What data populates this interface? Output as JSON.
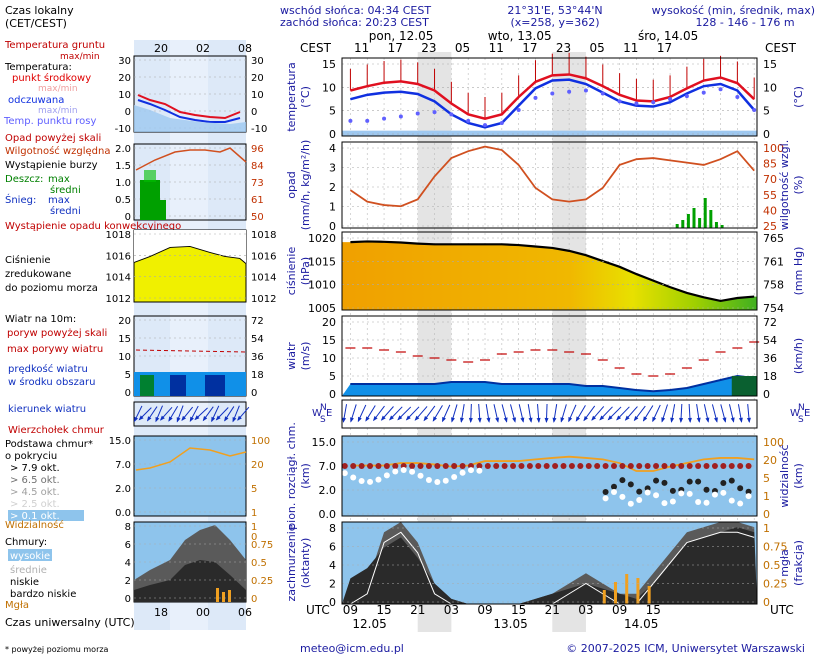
{
  "header": {
    "sunrise": "wschód słońca: 04:34 CEST",
    "sunset": "zachód słońca: 20:23 CEST",
    "coords": "21°31'E, 53°44'N",
    "grid": "(x=258, y=362)",
    "elevation_title": "wysokość (min, średnik, max)",
    "elevation_values": "128 - 146 - 176 m"
  },
  "time": {
    "cest_label": "CEST",
    "utc_label": "UTC",
    "days_top": [
      "pon, 12.05",
      "wto, 13.05",
      "śro, 14.05"
    ],
    "hours_top": [
      "11",
      "17",
      "23",
      "05",
      "11",
      "17",
      "23",
      "05",
      "11",
      "17"
    ],
    "hours_bottom": [
      "09",
      "15",
      "21",
      "03",
      "09",
      "15",
      "21",
      "03",
      "09",
      "15"
    ],
    "days_bottom": [
      "12.05",
      "13.05",
      "14.05"
    ]
  },
  "legend": {
    "local_time": "Czas lokalny",
    "local_time_sub": "(CET/CEST)",
    "legend_hours_top": [
      "20",
      "02",
      "08"
    ],
    "legend_hours_bottom": [
      "18",
      "00",
      "06"
    ],
    "soil_temp": "Temperatura gruntu",
    "soil_temp_sub": "max/min",
    "temperature": "Temperatura:",
    "mid_point": "punkt środkowy",
    "max_min": "max/min",
    "perceived": "odczuwana",
    "dew_point": "Temp. punktu rosy",
    "precip_over": "Opad powyżej skali",
    "rel_humidity": "Wilgotność względna",
    "storm": "Wystąpienie burzy",
    "rain": "Deszcz:",
    "max": "max",
    "mean": "średni",
    "snow": "Śnieg:",
    "conv_precip": "Wystąpienie opadu konwekcyjnego",
    "pressure": "Ciśnienie zredukowane do poziomu morza",
    "wind_10m": "Wiatr na 10m:",
    "gust_over": "poryw powyżej skali",
    "max_gusts": "max porywy wiatru",
    "wind_speed": "prędkość wiatru w środku obszaru",
    "wind_dir": "kierunek wiatru",
    "cb_top": "Wierzchołek chmur",
    "cloud_base": "Podstawa chmur* o pokryciu",
    "okt_levels": [
      "> 7.9 okt.",
      "> 6.5 okt.",
      "> 4.5 okt.",
      "> 2.5 okt.",
      "> 0.1 okt."
    ],
    "visibility": "Widzialność",
    "clouds": "Chmury:",
    "high": "wysokie",
    "middle": "średnie",
    "low": "niskie",
    "very_low": "bardzo niskie",
    "fog": "Mgła",
    "utc_time": "Czas uniwersalny (UTC)",
    "footnote": "* powyżej poziomu morza"
  },
  "panel_labels": {
    "temp_left": "temperatura",
    "temp_left_unit": "(°C)",
    "temp_right": "(°C)",
    "precip_left": "opad",
    "precip_left_unit": "(mm/h, kg/m²/h)",
    "precip_right": "wilgotność wzgl.",
    "precip_right_unit": "(%)",
    "pressure_left": "ciśnienie",
    "pressure_left_unit": "(hPa)",
    "pressure_right": "(mm Hg)",
    "wind_left": "wiatr",
    "wind_left_unit": "(m/s)",
    "wind_right": "(km/h)",
    "cloud_left": "pion. rozciągł. chm.",
    "cloud_left_unit": "(km)",
    "cloud_right": "widzialność",
    "cloud_right_unit": "(km)",
    "cover_left": "zachmurzenie",
    "cover_left_unit": "(oktanty)",
    "cover_right": "mgła",
    "cover_right_unit": "(frakcja)",
    "wind_dir_N": "N",
    "wind_dir_S": "S",
    "wind_dir_W": "W",
    "wind_dir_E": "E"
  },
  "axes": {
    "temp_left_ticks": [
      "15",
      "10",
      "5",
      "0"
    ],
    "temp_right_ticks": [
      "15",
      "10",
      "5",
      "0"
    ],
    "precip_left_ticks": [
      "4",
      "3",
      "2",
      "1",
      "0"
    ],
    "precip_right_ticks": [
      "100",
      "85",
      "70",
      "55",
      "40",
      "25"
    ],
    "pressure_left_ticks": [
      "1020",
      "1015",
      "1010",
      "1005"
    ],
    "pressure_right_ticks": [
      "765",
      "761",
      "758",
      "754"
    ],
    "wind_left_ticks": [
      "20",
      "15",
      "10",
      "5",
      "0"
    ],
    "wind_right_ticks": [
      "72",
      "54",
      "36",
      "18",
      "0"
    ],
    "cloud_left_ticks": [
      "15.0",
      "7.0",
      "2.0",
      "0.0"
    ],
    "cloud_right_ticks": [
      "100",
      "20",
      "5",
      "1",
      "0"
    ],
    "cover_left_ticks": [
      "8",
      "6",
      "4",
      "2",
      "0"
    ],
    "cover_right_ticks": [
      "1",
      "0.75",
      "0.5",
      "0.25",
      "0"
    ],
    "leg_temp_left": [
      "30",
      "20",
      "10",
      "0",
      "-10"
    ],
    "leg_temp_right": [
      "30",
      "20",
      "10",
      "0",
      "-10"
    ],
    "leg_precip_left": [
      "2.0",
      "1.5",
      "1.0",
      "0.5",
      "0"
    ],
    "leg_precip_right": [
      "96",
      "84",
      "73",
      "61",
      "50"
    ],
    "leg_press_left": [
      "1018",
      "1016",
      "1014",
      "1012"
    ],
    "leg_press_right": [
      "1018",
      "1016",
      "1014",
      "1012"
    ],
    "leg_wind_left": [
      "20",
      "15",
      "10",
      "5",
      "0"
    ],
    "leg_wind_right": [
      "72",
      "54",
      "36",
      "18",
      "0"
    ],
    "leg_cloud_left": [
      "15.0",
      "7.0",
      "2.0",
      "0.0"
    ],
    "leg_cloud_right": [
      "100",
      "20",
      "5",
      "1",
      "0"
    ],
    "leg_cover_left": [
      "8",
      "6",
      "4",
      "2",
      "0"
    ],
    "leg_cover_right": [
      "1",
      "0.75",
      "0.5",
      "0.25",
      "0"
    ]
  },
  "footer": {
    "email": "meteo@icm.edu.pl",
    "copyright": "© 2007-2025 ICM, Uniwersytet Warszawski"
  },
  "colors": {
    "night": "#e4e4e4",
    "legend_bg": "#dde9f8",
    "temp_red": "#e01020",
    "temp_blue": "#1030e0",
    "dew_point": "#6060ff",
    "humidity": "#d05020",
    "pressure_line": "#000000",
    "wind_blue": "#1090e8",
    "wind_dark": "#0030a0",
    "cloud_bg": "#8ec4ec",
    "visibility": "#f0a020",
    "label_blue": "#1a1aa0"
  },
  "chart_data": [
    {
      "type": "line",
      "title": "temperatura",
      "ylabel": "temperatura (°C)",
      "ylim": [
        -1,
        17
      ],
      "x": [
        0,
        3,
        6,
        9,
        12,
        15,
        18,
        21,
        24,
        27,
        30,
        33,
        36,
        39,
        42,
        45,
        48,
        51,
        54,
        57,
        60,
        63,
        66,
        69,
        72
      ],
      "series": [
        {
          "name": "punkt środkowy",
          "values": [
            9.5,
            10.5,
            11.3,
            11.6,
            11.0,
            9.5,
            6.5,
            4.0,
            3.0,
            4.0,
            8.0,
            11.5,
            13.0,
            13.2,
            12.3,
            10.5,
            8.5,
            7.2,
            7.0,
            8.0,
            10.0,
            11.8,
            12.5,
            11.2,
            7.5
          ]
        },
        {
          "name": "odczuwana",
          "values": [
            7.5,
            8.5,
            9.0,
            9.2,
            8.7,
            7.0,
            4.0,
            2.0,
            1.0,
            2.0,
            6.0,
            10.0,
            11.8,
            12.0,
            11.0,
            9.0,
            7.0,
            6.0,
            5.8,
            6.8,
            8.8,
            10.5,
            11.0,
            9.5,
            5.0
          ]
        },
        {
          "name": "Temp. punktu rosy",
          "values": [
            2.5,
            2.5,
            3.0,
            3.5,
            4.2,
            4.5,
            4.0,
            2.5,
            1.5,
            2.0,
            5.0,
            7.8,
            8.8,
            9.2,
            9.5,
            8.8,
            7.0,
            6.5,
            6.8,
            7.5,
            8.2,
            9.0,
            9.8,
            8.0,
            5.0
          ]
        }
      ]
    },
    {
      "type": "line",
      "title": "opad",
      "ylabel": "opad (mm/h, kg/m²/h)",
      "ylim": [
        25,
        100
      ],
      "x": [
        0,
        3,
        6,
        9,
        12,
        15,
        18,
        21,
        24,
        27,
        30,
        33,
        36,
        39,
        42,
        45,
        48,
        51,
        54,
        57,
        60,
        63,
        66,
        69,
        72
      ],
      "series": [
        {
          "name": "Wilgotność względna",
          "values": [
            58,
            48,
            45,
            44,
            50,
            70,
            86,
            92,
            96,
            93,
            80,
            60,
            50,
            48,
            50,
            60,
            80,
            85,
            86,
            84,
            82,
            80,
            85,
            92,
            75
          ]
        }
      ]
    },
    {
      "type": "area",
      "title": "ciśnienie",
      "ylabel": "ciśnienie (hPa)",
      "ylim": [
        1002.5,
        1024
      ],
      "x": [
        0,
        3,
        6,
        9,
        12,
        15,
        18,
        21,
        24,
        27,
        30,
        33,
        36,
        39,
        42,
        45,
        48,
        51,
        54,
        57,
        60,
        63,
        66,
        69,
        72
      ],
      "series": [
        {
          "name": "ciśnienie",
          "values": [
            1021.2,
            1021.4,
            1021.3,
            1021.1,
            1020.8,
            1020.6,
            1020.6,
            1020.6,
            1020.6,
            1020.6,
            1020.4,
            1020.0,
            1019.6,
            1018.8,
            1017.6,
            1016.0,
            1014.4,
            1012.4,
            1010.6,
            1008.8,
            1007.2,
            1006.0,
            1005.0,
            1005.8,
            1006.2
          ]
        }
      ]
    },
    {
      "type": "line",
      "title": "wiatr",
      "ylabel": "wiatr (m/s)",
      "ylim": [
        0,
        20
      ],
      "x": [
        0,
        3,
        6,
        9,
        12,
        15,
        18,
        21,
        24,
        27,
        30,
        33,
        36,
        39,
        42,
        45,
        48,
        51,
        54,
        57,
        60,
        63,
        66,
        69,
        72
      ],
      "series": [
        {
          "name": "max porywy wiatru",
          "values": [
            12,
            12,
            11.5,
            11,
            10,
            9.5,
            9,
            8.5,
            9,
            10.5,
            11,
            11.5,
            11.5,
            11,
            10.5,
            9,
            7,
            5.5,
            5,
            5.5,
            7,
            9,
            11,
            12,
            13.5
          ]
        },
        {
          "name": "prędkość wiatru",
          "values": [
            3,
            3,
            3,
            3,
            3,
            3,
            3.5,
            3.5,
            3.5,
            3,
            3,
            3,
            3,
            3,
            2.5,
            2.5,
            2,
            1.5,
            1.2,
            1.5,
            2,
            3,
            4,
            5,
            4.5
          ]
        }
      ]
    },
    {
      "type": "line",
      "title": "pion. rozciągł. chm.",
      "ylabel": "pion. rozciągł. chm. (km)",
      "ylim": [
        0,
        15
      ],
      "x": [
        0,
        3,
        6,
        9,
        12,
        15,
        18,
        21,
        24,
        27,
        30,
        33,
        36,
        39,
        42,
        45,
        48,
        51,
        54,
        57,
        60,
        63,
        66,
        69,
        72
      ],
      "series": [
        {
          "name": "Widzialność",
          "values": [
            20,
            20,
            20,
            25,
            25,
            22,
            18,
            20,
            30,
            30,
            30,
            35,
            40,
            45,
            40,
            35,
            25,
            12,
            12,
            18,
            25,
            35,
            40,
            40,
            35
          ]
        }
      ]
    },
    {
      "type": "area",
      "title": "zachmurzenie",
      "ylabel": "zachmurzenie (oktanty)",
      "ylim": [
        0,
        8
      ],
      "x": [
        0,
        3,
        6,
        9,
        12,
        15,
        18,
        21,
        24,
        27,
        30,
        33,
        36,
        39,
        42,
        45,
        48,
        51,
        54,
        57,
        60,
        63,
        66,
        69,
        72
      ],
      "series": [
        {
          "name": "niskie",
          "values": [
            2.5,
            3.5,
            5.5,
            6.5,
            4.5,
            2,
            0.5,
            0,
            0,
            0,
            0,
            0.5,
            1,
            1.5,
            2,
            1.5,
            1,
            0.5,
            2,
            4,
            6,
            6.5,
            7,
            7.5,
            7
          ]
        },
        {
          "name": "wysokie",
          "values": [
            1,
            2,
            7,
            8,
            6,
            2,
            0.5,
            0,
            0,
            0,
            0,
            0.5,
            1,
            2,
            3,
            2,
            1,
            1,
            3,
            5,
            7,
            7.5,
            8,
            8,
            7.5
          ]
        }
      ]
    }
  ]
}
